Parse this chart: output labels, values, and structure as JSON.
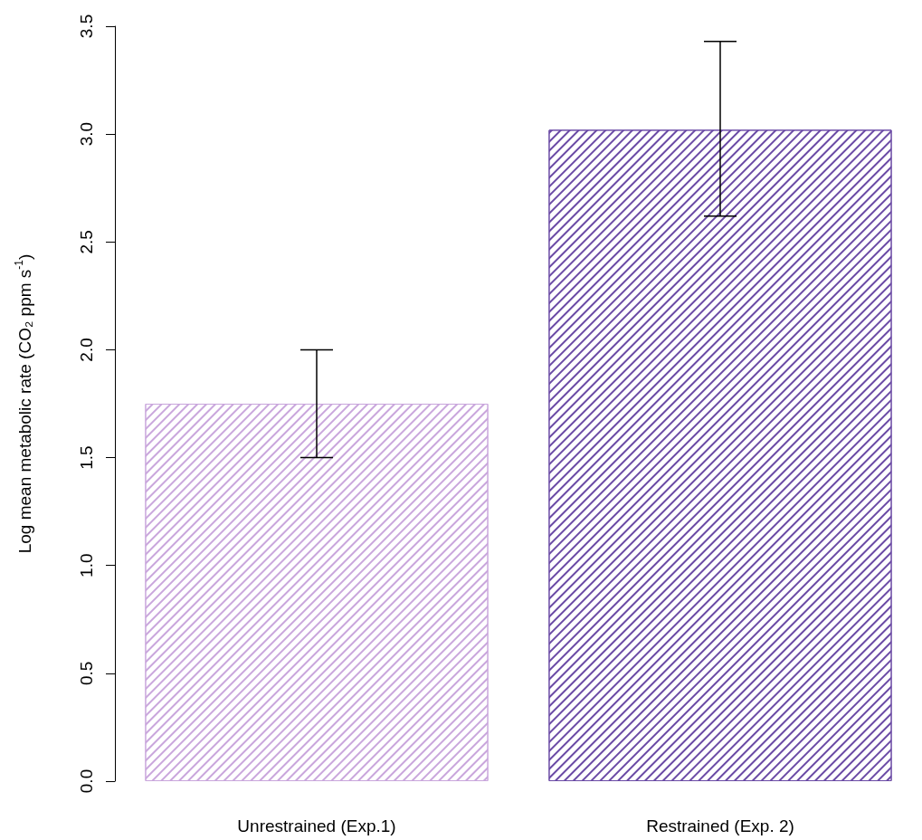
{
  "chart_data": {
    "type": "bar",
    "ylabel": "Log mean metabolic rate (CO₂ ppm s$^{-1}$)",
    "categories": [
      "Unrestrained (Exp.1)",
      "Restrained (Exp. 2)"
    ],
    "values": [
      1.75,
      3.02
    ],
    "colors": [
      "#c9a6dc",
      "#6a4aa5"
    ],
    "errors": [
      [
        1.5,
        2.0
      ],
      [
        2.62,
        3.43
      ]
    ],
    "ylim": [
      0,
      3.5
    ],
    "yticks": [
      {
        "value": 0,
        "label": "0.0"
      },
      0.5,
      {
        "value": 1,
        "label": "1.0"
      },
      1.5,
      {
        "value": 2,
        "label": "2.0"
      },
      2.5,
      {
        "value": 3,
        "label": "3.0"
      },
      3.5
    ]
  }
}
